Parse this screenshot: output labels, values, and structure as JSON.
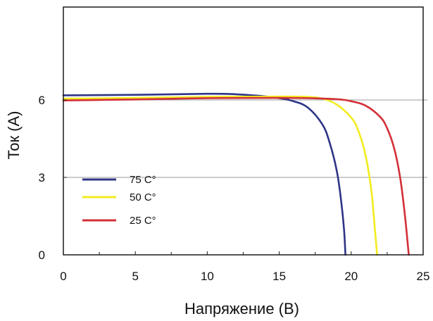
{
  "chart_data": {
    "type": "line",
    "title": "",
    "xlabel": "Напряжение (В)",
    "ylabel": "Ток (А)",
    "xlim": [
      0,
      25
    ],
    "ylim": [
      0,
      9.6
    ],
    "x_ticks": [
      0,
      5,
      10,
      15,
      20,
      25
    ],
    "x_tick_labels": [
      "0",
      "5",
      "10",
      "15",
      "20",
      "25"
    ],
    "y_ticks": [
      0,
      3,
      6
    ],
    "y_tick_labels": [
      "0",
      "3",
      "6"
    ],
    "grid": "horizontal lines at 3 and 6",
    "legend_position": "bottom-left",
    "series": [
      {
        "name": "75 C°",
        "color": "#2e3586",
        "x": [
          0,
          5,
          10,
          12,
          14,
          15,
          16,
          17,
          18,
          18.5,
          19.0,
          19.3,
          19.5,
          19.6
        ],
        "y": [
          6.18,
          6.2,
          6.24,
          6.22,
          6.14,
          6.07,
          5.95,
          5.7,
          5.05,
          4.35,
          3.25,
          2.1,
          1.0,
          0
        ]
      },
      {
        "name": "50 C°",
        "color": "#f2ec1e",
        "x": [
          0,
          5,
          10,
          15,
          17,
          18,
          19,
          20,
          20.5,
          21.0,
          21.4,
          21.6,
          21.8
        ],
        "y": [
          6.05,
          6.08,
          6.12,
          6.13,
          6.12,
          6.05,
          5.82,
          5.32,
          4.8,
          3.85,
          2.5,
          1.3,
          0
        ]
      },
      {
        "name": "25 C°",
        "color": "#d23038",
        "x": [
          0,
          5,
          10,
          15,
          17,
          19,
          20,
          21,
          22,
          22.5,
          23.0,
          23.4,
          23.7,
          23.9,
          24.0
        ],
        "y": [
          5.98,
          6.02,
          6.07,
          6.08,
          6.07,
          6.03,
          5.95,
          5.78,
          5.35,
          4.9,
          4.1,
          3.0,
          1.7,
          0.6,
          0
        ]
      }
    ]
  }
}
